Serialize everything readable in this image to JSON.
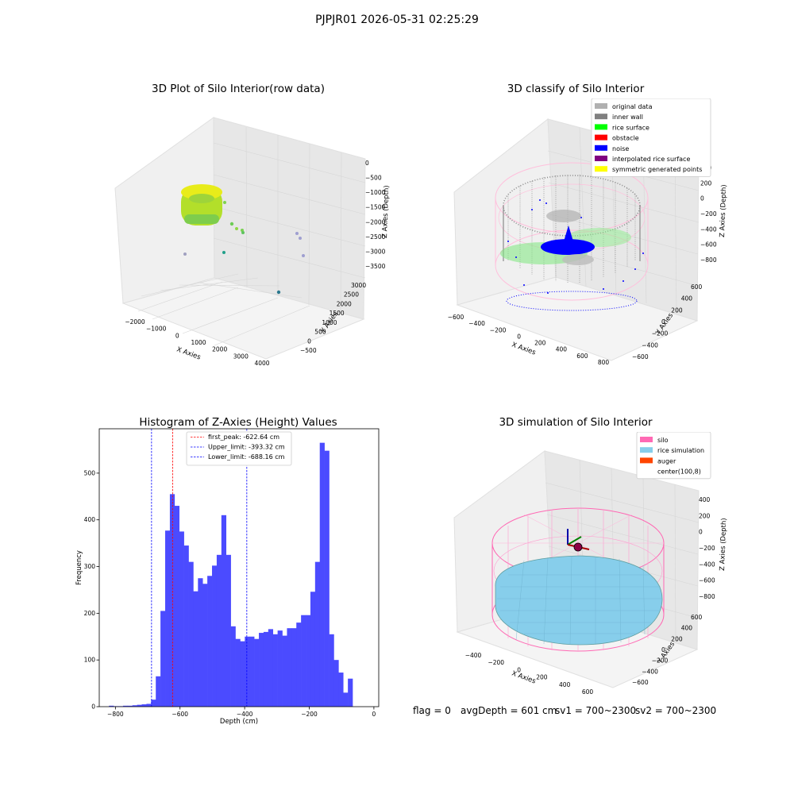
{
  "suptitle": "PJPJR01 2026-05-31 02:25:29",
  "panels": {
    "raw": {
      "title": "3D Plot of Silo Interior(row data)",
      "xlabel": "X Axies",
      "ylabel": "Y Axies",
      "zlabel": "Z Axies (Depth)",
      "xticks": [
        "−2000",
        "−1000",
        "0",
        "1000",
        "2000",
        "3000",
        "4000"
      ],
      "yticks": [
        "−500",
        "0",
        "500",
        "1000",
        "1500",
        "2000",
        "2500",
        "3000"
      ],
      "zticks": [
        "0",
        "−500",
        "−1000",
        "−1500",
        "−2000",
        "−2500",
        "−3000",
        "−3500"
      ]
    },
    "classify": {
      "title": "3D classify of Silo Interior",
      "xlabel": "X Axies",
      "ylabel": "Y Axies",
      "zlabel": "Z Axies (Depth)",
      "xticks": [
        "−600",
        "−400",
        "−200",
        "0",
        "200",
        "400",
        "600",
        "800"
      ],
      "yticks": [
        "−600",
        "−400",
        "−200",
        "0",
        "200",
        "400",
        "600"
      ],
      "zticks": [
        "400",
        "200",
        "0",
        "−200",
        "−400",
        "−600",
        "−800"
      ],
      "legend": [
        {
          "label": "original data",
          "color": "#b0b0b0"
        },
        {
          "label": "inner wall",
          "color": "#808080"
        },
        {
          "label": "rice surface",
          "color": "#00ff00"
        },
        {
          "label": "obstacle",
          "color": "#ff0000"
        },
        {
          "label": "noise",
          "color": "#0000ff"
        },
        {
          "label": "interpolated rice surface",
          "color": "#800080"
        },
        {
          "label": "symmetric generated points",
          "color": "#ffff00"
        }
      ]
    },
    "simulation": {
      "title": "3D simulation of Silo Interior",
      "xlabel": "X Axies",
      "ylabel": "Y Axies",
      "zlabel": "Z Axies (Depth)",
      "xticks": [
        "−400",
        "−200",
        "0",
        "200",
        "400",
        "600"
      ],
      "yticks": [
        "−600",
        "−400",
        "−200",
        "0",
        "200",
        "400",
        "600"
      ],
      "zticks": [
        "400",
        "200",
        "0",
        "−200",
        "−400",
        "−600",
        "−800"
      ],
      "legend": [
        {
          "label": "silo",
          "color": "#ff69b4"
        },
        {
          "label": "rice simulation",
          "color": "#87ceeb"
        },
        {
          "label": "auger",
          "color": "#ff4500"
        },
        {
          "label": "center(100,8)",
          "color": "#ffffff"
        }
      ]
    }
  },
  "status": {
    "flag": "flag = 0",
    "avgDepth": "avgDepth = 601 cm",
    "sv1": "sv1 = 700~2300",
    "sv2": "sv2 = 700~2300"
  },
  "chart_data": {
    "type": "bar",
    "title": "Histogram of Z-Axies (Height) Values",
    "xlabel": "Depth (cm)",
    "ylabel": "Frequency",
    "xlim": [
      -850,
      15
    ],
    "ylim": [
      0,
      595
    ],
    "xticks": [
      -800,
      -600,
      -400,
      -200,
      0
    ],
    "yticks": [
      0,
      100,
      200,
      300,
      400,
      500
    ],
    "bin_width": 14.5,
    "bin_starts": [
      -820,
      -805.5,
      -791,
      -776.5,
      -762,
      -747.5,
      -733,
      -718.5,
      -704,
      -689.5,
      -675,
      -660.5,
      -646,
      -631.5,
      -617,
      -602.5,
      -588,
      -573.5,
      -559,
      -544.5,
      -530,
      -515.5,
      -501,
      -486.5,
      -472,
      -457.5,
      -443,
      -428.5,
      -414,
      -399.5,
      -385,
      -370.5,
      -356,
      -341.5,
      -327,
      -312.5,
      -298,
      -283.5,
      -269,
      -254.5,
      -240,
      -225.5,
      -211,
      -196.5,
      -182,
      -167.5,
      -153,
      -138.5,
      -124,
      -109.5,
      -95,
      -80.5,
      -66,
      -51.5,
      -37,
      -22.5,
      -8
    ],
    "values": [
      2,
      1,
      1,
      2,
      2,
      3,
      4,
      5,
      6,
      15,
      65,
      205,
      377,
      455,
      430,
      375,
      345,
      310,
      247,
      275,
      263,
      280,
      302,
      325,
      410,
      325,
      172,
      145,
      140,
      150,
      150,
      145,
      158,
      160,
      166,
      155,
      163,
      152,
      168,
      168,
      180,
      196,
      196,
      246,
      310,
      565,
      548,
      155,
      100,
      73,
      30,
      60,
      0,
      0,
      0,
      0,
      0
    ],
    "lines": [
      {
        "label": "first_peak: -622.64 cm",
        "x": -622.64,
        "color": "#ff0000"
      },
      {
        "label": "Upper_limit: -393.32 cm",
        "x": -393.32,
        "color": "#0000ff"
      },
      {
        "label": "Lower_limit: -688.16 cm",
        "x": -688.16,
        "color": "#0000ff"
      }
    ],
    "bar_color": "#4b4bff",
    "legend_position": "top-center"
  }
}
